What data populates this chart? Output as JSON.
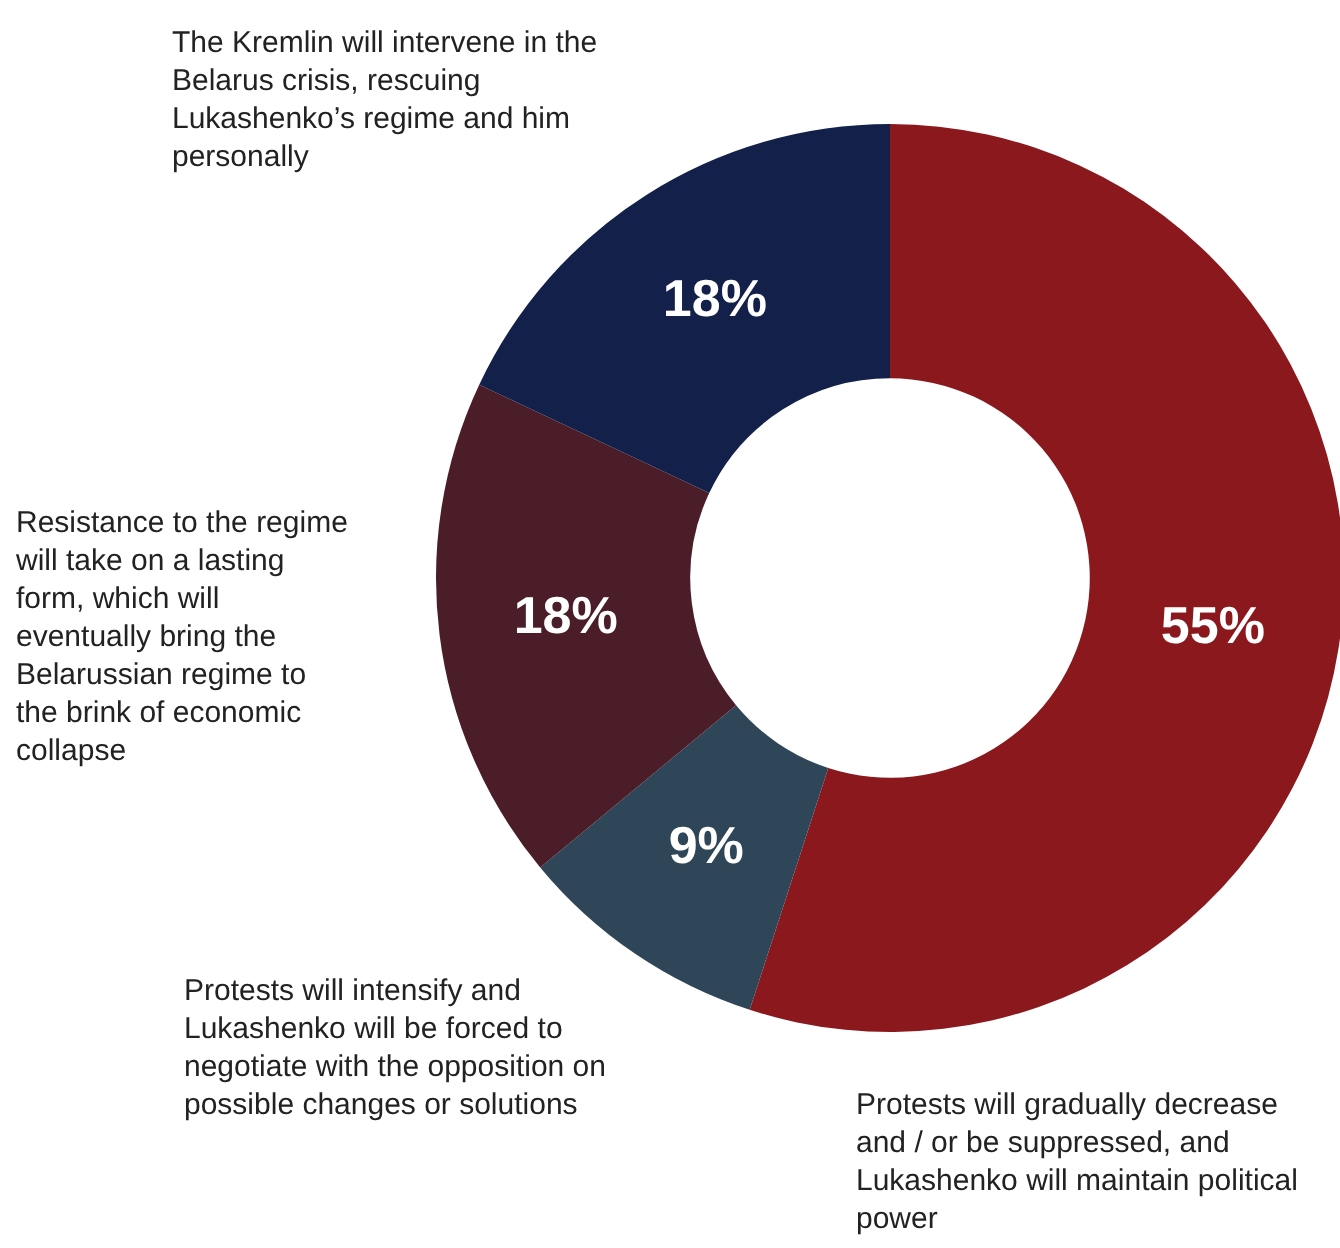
{
  "chart_data": {
    "type": "donut",
    "categories": [
      "Protests will gradually decrease and / or be suppressed, and Lukashenko will maintain political power",
      "Protests will intensify and Lukashenko will be forced to negotiate with the opposition on possible changes or solutions",
      "Resistance to the regime will take on a lasting form, which will eventually bring the Belarussian regime to the brink of economic collapse",
      "The Kremlin will intervene in the Belarus crisis, rescuing Lukashenko’s regime and him personally"
    ],
    "values": [
      55,
      9,
      18,
      18
    ],
    "colors": [
      "#8b181d",
      "#2f4558",
      "#4a1d28",
      "#12204a"
    ],
    "value_labels": [
      "55%",
      "9%",
      "18%",
      "18%"
    ],
    "legend": false
  }
}
